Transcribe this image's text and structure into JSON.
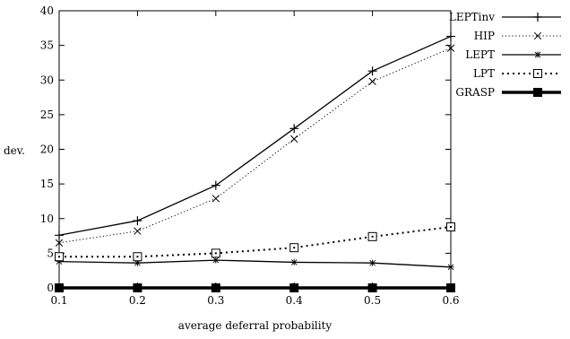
{
  "chart_data": {
    "type": "line",
    "title": "",
    "xlabel": "average deferral probability",
    "ylabel": "dev.",
    "xlim": [
      0.1,
      0.6
    ],
    "ylim": [
      0,
      40
    ],
    "x_ticks": [
      "0.1",
      "0.2",
      "0.3",
      "0.4",
      "0.5",
      "0.6"
    ],
    "y_ticks": [
      "0",
      "5",
      "10",
      "15",
      "20",
      "25",
      "30",
      "35",
      "40"
    ],
    "grid": false,
    "legend_position": "top-right",
    "x": [
      0.1,
      0.2,
      0.3,
      0.4,
      0.5,
      0.6
    ],
    "series": [
      {
        "name": "LEPTinv",
        "values": [
          7.6,
          9.7,
          14.8,
          23.0,
          31.3,
          36.3
        ],
        "line": "solid",
        "marker": "plus",
        "color": "#000000"
      },
      {
        "name": "HIP",
        "values": [
          6.5,
          8.2,
          12.9,
          21.5,
          29.8,
          34.6
        ],
        "line": "dotted",
        "marker": "x",
        "color": "#000000"
      },
      {
        "name": "LEPT",
        "values": [
          3.8,
          3.6,
          4.0,
          3.7,
          3.6,
          3.0
        ],
        "line": "solid",
        "marker": "star",
        "color": "#000000"
      },
      {
        "name": "LPT",
        "values": [
          4.5,
          4.5,
          5.0,
          5.8,
          7.4,
          8.8
        ],
        "line": "dotted-bold",
        "marker": "square-open",
        "color": "#000000"
      },
      {
        "name": "GRASP",
        "values": [
          0,
          0,
          0,
          0,
          0,
          0
        ],
        "line": "bold",
        "marker": "square-filled",
        "color": "#000000"
      }
    ]
  }
}
